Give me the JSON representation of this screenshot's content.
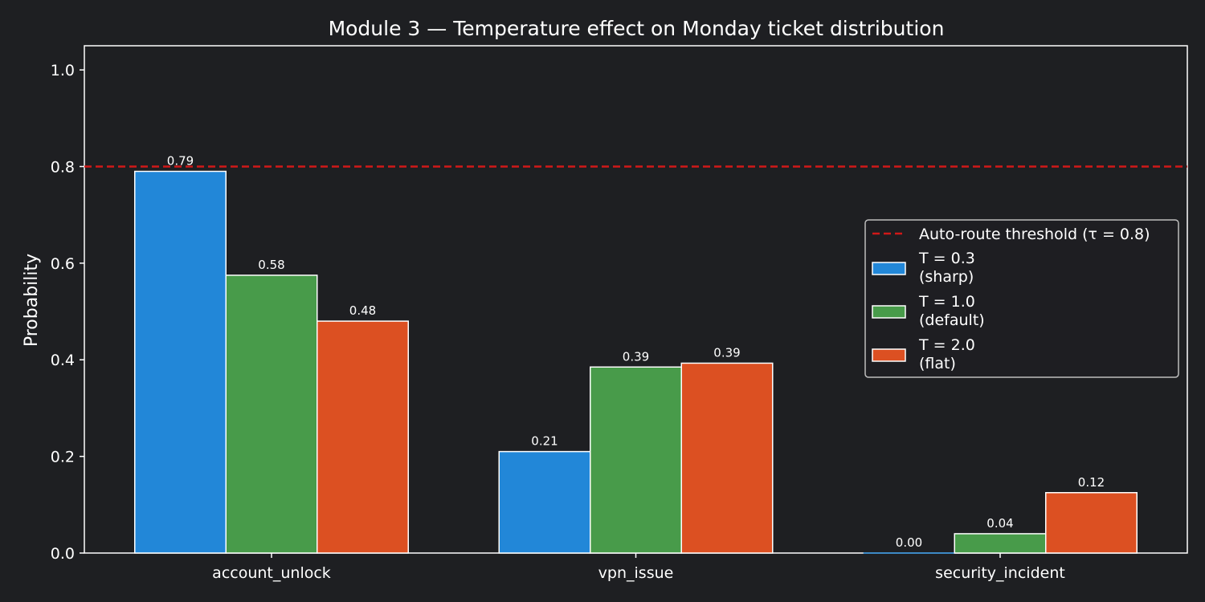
{
  "chart_data": {
    "type": "bar",
    "title": "Module 3 — Temperature effect on Monday ticket distribution",
    "xlabel": "",
    "ylabel": "Probability",
    "ylim": [
      0,
      1.05
    ],
    "yticks": [
      "0.0",
      "0.2",
      "0.4",
      "0.6",
      "0.8",
      "1.0"
    ],
    "categories": [
      "account_unlock",
      "vpn_issue",
      "security_incident"
    ],
    "series": [
      {
        "name": "T = 0.3\n(sharp)",
        "color": "#2287d8",
        "values": [
          0.79,
          0.21,
          0.0
        ],
        "labels": [
          "0.79",
          "0.21",
          "0.00"
        ]
      },
      {
        "name": "T = 1.0\n(default)",
        "color": "#489b4a",
        "values": [
          0.575,
          0.385,
          0.04
        ],
        "labels": [
          "0.58",
          "0.39",
          "0.04"
        ]
      },
      {
        "name": "T = 2.0\n(flat)",
        "color": "#dc5022",
        "values": [
          0.48,
          0.393,
          0.125
        ],
        "labels": [
          "0.48",
          "0.39",
          "0.12"
        ]
      }
    ],
    "threshold": {
      "value": 0.8,
      "label": "Auto-route threshold (τ = 0.8)",
      "color": "#d01818"
    },
    "legend_position": "right",
    "grid": false
  }
}
